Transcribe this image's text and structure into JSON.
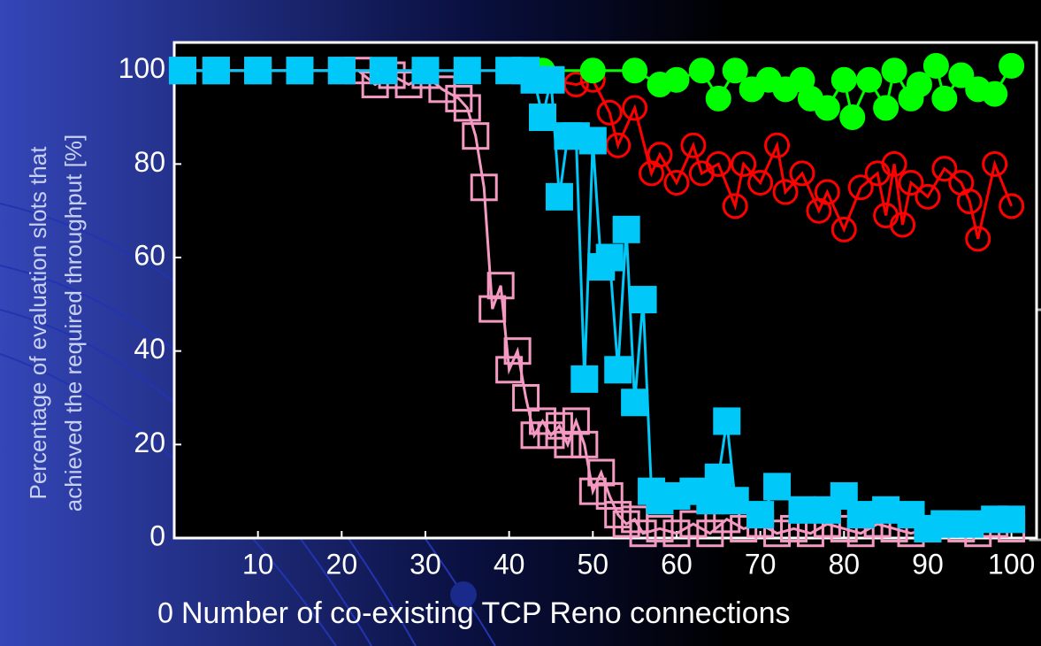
{
  "chart_data": {
    "type": "line",
    "y_label_lines": [
      "Percentage of evaluation slots that",
      "achieved the required throughput [%]"
    ],
    "x_label": "Number of co-existing TCP Reno connections",
    "xlim": [
      0,
      103
    ],
    "ylim": [
      0,
      106
    ],
    "xticks": [
      0,
      10,
      20,
      30,
      40,
      50,
      60,
      70,
      80,
      90,
      100
    ],
    "yticks": [
      0,
      20,
      40,
      60,
      80,
      100
    ],
    "series": [
      {
        "color": "#ff0000",
        "marker": "circle",
        "filled": false,
        "x": [
          1,
          10,
          20,
          30,
          40,
          45,
          48,
          50,
          52,
          53,
          55,
          57,
          58,
          60,
          62,
          63,
          65,
          67,
          68,
          70,
          72,
          73,
          75,
          77,
          78,
          80,
          82,
          84,
          85,
          86,
          87,
          88,
          90,
          92,
          94,
          95,
          96,
          98,
          100
        ],
        "values": [
          100,
          100,
          100,
          100,
          100,
          98,
          97,
          98,
          91,
          84,
          92,
          78,
          82,
          76,
          84,
          78,
          80,
          71,
          80,
          76,
          84,
          74,
          78,
          70,
          74,
          66,
          75,
          78,
          69,
          80,
          67,
          76,
          73,
          79,
          76,
          72,
          64,
          80,
          71
        ]
      },
      {
        "color": "#00ff00",
        "marker": "circle",
        "filled": true,
        "x": [
          40,
          44,
          50,
          55,
          58,
          60,
          63,
          65,
          67,
          69,
          71,
          73,
          75,
          76,
          78,
          80,
          81,
          83,
          85,
          86,
          88,
          89,
          91,
          92,
          94,
          96,
          98,
          100
        ],
        "values": [
          100,
          100,
          100,
          100,
          97,
          98,
          100,
          94,
          100,
          96,
          98,
          96,
          98,
          94,
          92,
          98,
          90,
          98,
          92,
          100,
          94,
          97,
          101,
          94,
          99,
          96,
          95,
          101
        ]
      },
      {
        "color": "#f49ac2",
        "marker": "square",
        "filled": false,
        "x": [
          1,
          5,
          10,
          15,
          20,
          22,
          24,
          26,
          28,
          30,
          32,
          34,
          35,
          36,
          37,
          38,
          39,
          40,
          41,
          42,
          43,
          44,
          45,
          46,
          47,
          48,
          49,
          50,
          51,
          52,
          53,
          54,
          55,
          56,
          58,
          60,
          62,
          64,
          66,
          68,
          70,
          72,
          74,
          76,
          78,
          80,
          82,
          84,
          86,
          88,
          90,
          92,
          94,
          96,
          98,
          100
        ],
        "values": [
          100,
          100,
          100,
          100,
          100,
          100,
          97,
          99,
          97,
          99,
          96,
          94,
          92,
          86,
          75,
          49,
          54,
          36,
          40,
          30,
          22,
          25,
          22,
          24,
          20,
          25,
          20,
          10,
          14,
          9,
          5,
          3,
          4,
          1,
          2,
          1,
          3,
          1,
          4,
          2,
          3,
          1,
          2,
          1,
          3,
          2,
          1,
          3,
          2,
          1,
          2,
          3,
          2,
          1,
          3,
          2
        ]
      },
      {
        "color": "#00c8f8",
        "marker": "square",
        "filled": true,
        "x": [
          1,
          5,
          10,
          15,
          20,
          25,
          30,
          35,
          40,
          42,
          43,
          44,
          45,
          46,
          47,
          48,
          49,
          50,
          51,
          52,
          53,
          54,
          55,
          56,
          57,
          58,
          60,
          62,
          64,
          65,
          66,
          67,
          70,
          72,
          75,
          78,
          80,
          82,
          85,
          88,
          90,
          92,
          95,
          98,
          100
        ],
        "values": [
          100,
          100,
          100,
          100,
          100,
          100,
          100,
          100,
          100,
          100,
          98,
          90,
          98,
          73,
          86,
          86,
          34,
          85,
          58,
          60,
          36,
          66,
          29,
          51,
          10,
          8,
          9,
          10,
          8,
          13,
          25,
          8,
          5,
          11,
          6,
          6,
          9,
          5,
          6,
          5,
          2,
          3,
          3,
          4,
          4
        ]
      }
    ]
  }
}
